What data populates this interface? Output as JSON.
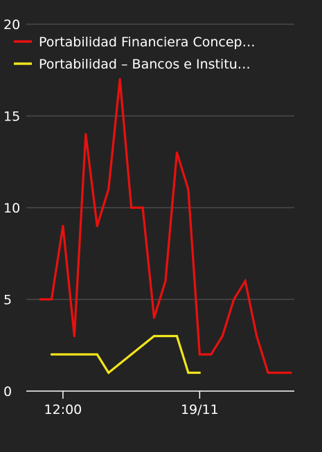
{
  "chart_data": {
    "type": "line",
    "title": "",
    "xlabel": "",
    "ylabel": "",
    "ylim": [
      0,
      20
    ],
    "yticks": [
      0,
      5,
      10,
      15,
      20
    ],
    "grid": true,
    "legend_position": "top-left",
    "x_tick_labels": [
      {
        "label": "12:00",
        "index": 2
      },
      {
        "label": "19/11",
        "index": 14
      }
    ],
    "series": [
      {
        "name": "Portabilidad Financiera Concep…",
        "color": "#e8110f",
        "values": [
          5,
          5,
          9,
          3,
          14,
          9,
          11,
          17,
          10,
          10,
          4,
          6,
          13,
          11,
          2,
          2,
          3,
          5,
          6,
          3,
          1,
          1,
          1
        ]
      },
      {
        "name": "Portabilidad – Bancos e Institu…",
        "color": "#f2e51c",
        "values": [
          null,
          2,
          2,
          2,
          2,
          2,
          1,
          1.5,
          2,
          2.5,
          3,
          3,
          3,
          1,
          1,
          null,
          null,
          null,
          null,
          null,
          null,
          null,
          null
        ]
      }
    ]
  }
}
